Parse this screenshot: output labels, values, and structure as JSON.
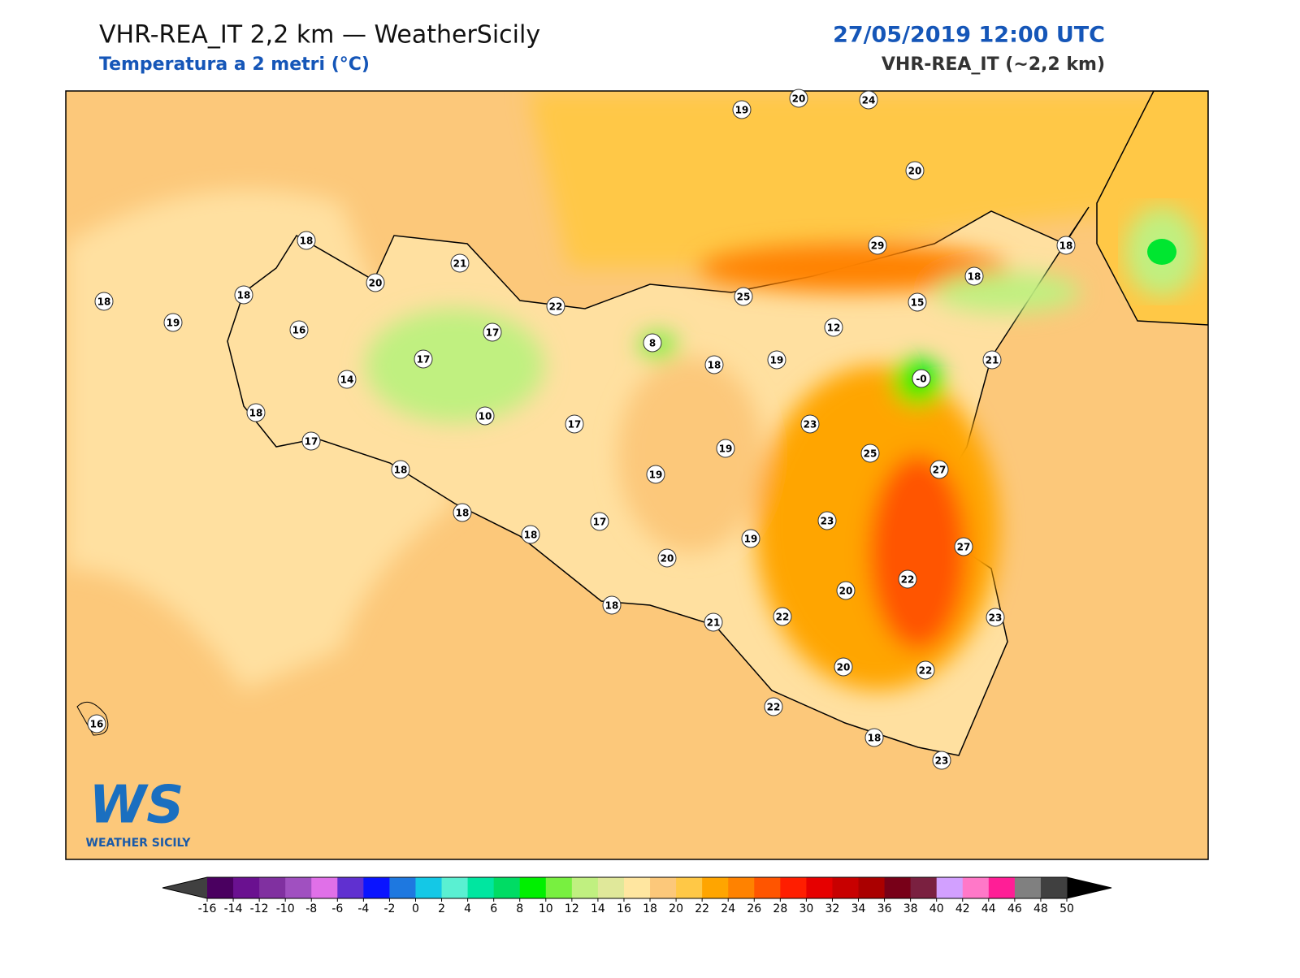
{
  "header": {
    "title": "VHR-REA_IT 2,2 km — WeatherSicily",
    "subtitle": "Temperatura a 2 metri (°C)",
    "datetime": "27/05/2019 12:00 UTC",
    "model": "VHR-REA_IT (~2,2 km)"
  },
  "stations": [
    "19",
    "20",
    "24",
    "20",
    "18",
    "21",
    "29",
    "18",
    "20",
    "18",
    "18",
    "22",
    "25",
    "18",
    "15",
    "19",
    "16",
    "17",
    "8",
    "12",
    "17",
    "18",
    "19",
    "21",
    "14",
    "-0",
    "18",
    "10",
    "17",
    "23",
    "17",
    "19",
    "25",
    "18",
    "19",
    "27",
    "18",
    "17",
    "23",
    "18",
    "19",
    "27",
    "20",
    "22",
    "20",
    "18",
    "22",
    "21",
    "23",
    "20",
    "22",
    "22",
    "16",
    "18",
    "23"
  ],
  "logo": {
    "text": "WS",
    "caption": "WEATHER SICILY"
  },
  "colorbar": {
    "ticks": [
      -16,
      -14,
      -12,
      -10,
      -8,
      -6,
      -4,
      -2,
      0,
      2,
      4,
      6,
      8,
      10,
      12,
      14,
      16,
      18,
      20,
      22,
      24,
      26,
      28,
      30,
      32,
      34,
      36,
      38,
      40,
      42,
      44,
      46,
      48,
      50
    ],
    "colors": [
      "#4a0060",
      "#6a1190",
      "#8030a0",
      "#a050c0",
      "#e070e8",
      "#6030d0",
      "#0a14ff",
      "#1e78e0",
      "#14c8e6",
      "#5af0d2",
      "#00e6a0",
      "#00dc64",
      "#00f000",
      "#78f040",
      "#c0f080",
      "#e0e89a",
      "#ffe6a0",
      "#fcc87a",
      "#ffc846",
      "#ffa500",
      "#ff8200",
      "#ff5500",
      "#ff1e00",
      "#e60000",
      "#c80000",
      "#aa0000",
      "#780018",
      "#7a2040",
      "#d2a0ff",
      "#ff78c8",
      "#ff1e96",
      "#808080",
      "#404040"
    ],
    "under_color": "#404040",
    "over_color": "#000000"
  }
}
